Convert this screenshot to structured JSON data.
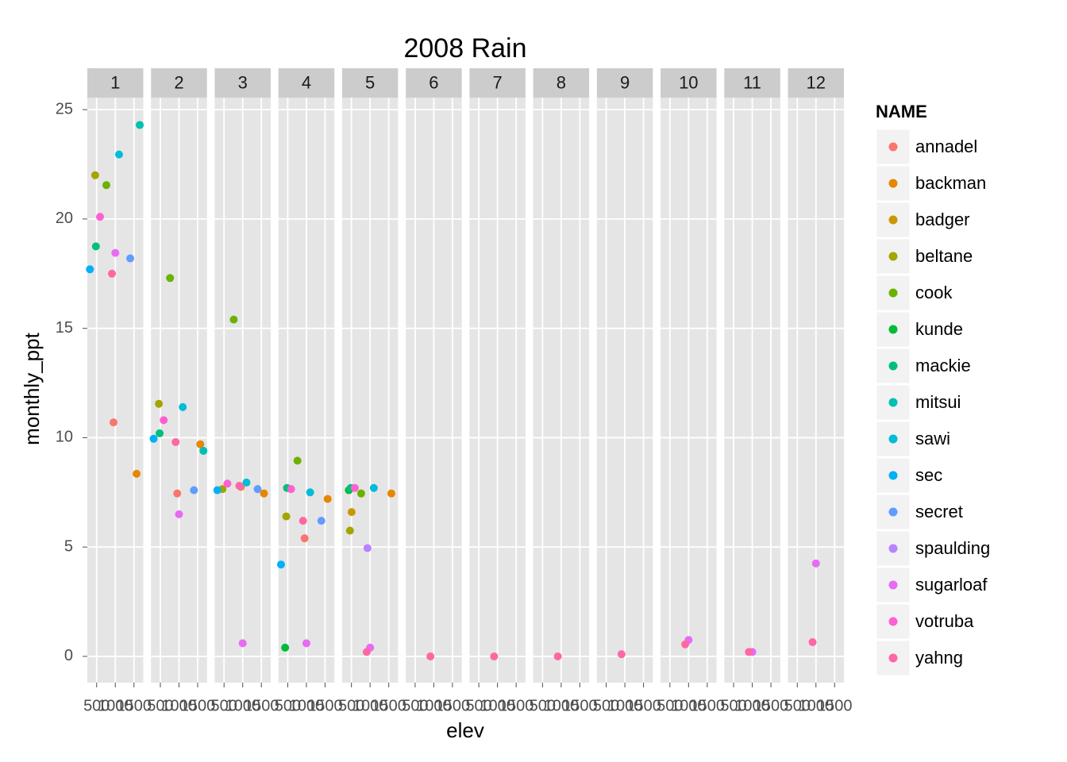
{
  "chart_data": {
    "type": "scatter",
    "title": "2008 Rain",
    "x_label": "elev",
    "y_label": "monthly_ppt",
    "legend_title": "NAME",
    "panels": [
      1,
      2,
      3,
      4,
      5,
      6,
      7,
      8,
      9,
      10,
      11,
      12
    ],
    "xlim": [
      250,
      1750
    ],
    "xticks": [
      500,
      1000,
      1500
    ],
    "ylim": [
      -1.2,
      25.55
    ],
    "yticks": [
      0,
      5,
      10,
      15,
      20,
      25
    ],
    "grid": true,
    "series": [
      {
        "name": "annadel",
        "color": "#F8766D",
        "panel": [
          1,
          2,
          3,
          4
        ],
        "x": [
          952,
          952,
          952,
          952
        ],
        "values": [
          10.7,
          7.45,
          7.75,
          5.4
        ]
      },
      {
        "name": "backman",
        "color": "#E58700",
        "panel": [
          1,
          2,
          3,
          4,
          5
        ],
        "x": [
          1570,
          1570,
          1570,
          1570,
          1570
        ],
        "values": [
          8.35,
          9.7,
          7.45,
          7.2,
          7.45
        ]
      },
      {
        "name": "badger",
        "color": "#C99800",
        "panel": [
          5
        ],
        "x": [
          505
        ],
        "values": [
          6.6
        ]
      },
      {
        "name": "beltane",
        "color": "#A3A500",
        "panel": [
          1,
          2,
          3,
          4,
          5
        ],
        "x": [
          460,
          460,
          460,
          460,
          460
        ],
        "values": [
          22.0,
          11.55,
          7.65,
          6.4,
          5.75
        ]
      },
      {
        "name": "cook",
        "color": "#6BB100",
        "panel": [
          1,
          2,
          3,
          4,
          5
        ],
        "x": [
          760,
          760,
          760,
          760,
          760
        ],
        "values": [
          21.55,
          17.3,
          15.4,
          8.95,
          7.45
        ]
      },
      {
        "name": "kunde",
        "color": "#00BA38",
        "panel": [
          4,
          5
        ],
        "x": [
          430,
          430
        ],
        "values": [
          0.4,
          7.6
        ]
      },
      {
        "name": "mackie",
        "color": "#00BF7D",
        "panel": [
          1,
          2,
          4,
          5
        ],
        "x": [
          480,
          480,
          480,
          480
        ],
        "values": [
          18.75,
          10.2,
          7.7,
          7.7
        ]
      },
      {
        "name": "mitsui",
        "color": "#00C0AF",
        "panel": [
          1,
          2
        ],
        "x": [
          1655,
          1655
        ],
        "values": [
          24.3,
          9.4
        ]
      },
      {
        "name": "sawi",
        "color": "#00BCD8",
        "panel": [
          1,
          2,
          3,
          4,
          5
        ],
        "x": [
          1100,
          1100,
          1100,
          1100,
          1100
        ],
        "values": [
          22.95,
          11.4,
          7.95,
          7.5,
          7.7
        ]
      },
      {
        "name": "sec",
        "color": "#00B0F6",
        "panel": [
          1,
          2,
          3,
          4
        ],
        "x": [
          320,
          320,
          320,
          320
        ],
        "values": [
          17.7,
          9.95,
          7.6,
          4.2
        ]
      },
      {
        "name": "secret",
        "color": "#619CFF",
        "panel": [
          1,
          2,
          3,
          4
        ],
        "x": [
          1400,
          1400,
          1400,
          1400
        ],
        "values": [
          18.2,
          7.6,
          7.65,
          6.2
        ]
      },
      {
        "name": "spaulding",
        "color": "#B983FF",
        "panel": [
          5
        ],
        "x": [
          930
        ],
        "values": [
          4.95
        ]
      },
      {
        "name": "sugarloaf",
        "color": "#E76BF3",
        "panel": [
          1,
          2,
          3,
          4,
          5,
          10,
          11,
          12
        ],
        "x": [
          1000,
          1000,
          1000,
          1000,
          1000,
          1000,
          1000,
          1000
        ],
        "values": [
          18.45,
          6.5,
          0.6,
          0.6,
          0.4,
          0.75,
          0.2,
          4.25
        ]
      },
      {
        "name": "votruba",
        "color": "#FD61D1",
        "panel": [
          1,
          2,
          3,
          4,
          5
        ],
        "x": [
          590,
          590,
          590,
          590,
          590
        ],
        "values": [
          20.1,
          10.8,
          7.9,
          7.65,
          7.7
        ]
      },
      {
        "name": "yahng",
        "color": "#FF67A4",
        "panel": [
          1,
          2,
          3,
          4,
          5,
          6,
          7,
          8,
          9,
          10,
          11,
          12
        ],
        "x": [
          910,
          910,
          910,
          910,
          910,
          910,
          910,
          910,
          910,
          910,
          910,
          910
        ],
        "values": [
          17.5,
          9.8,
          7.8,
          6.2,
          0.2,
          0,
          0,
          0,
          0.1,
          0.55,
          0.2,
          0.65
        ]
      }
    ]
  }
}
